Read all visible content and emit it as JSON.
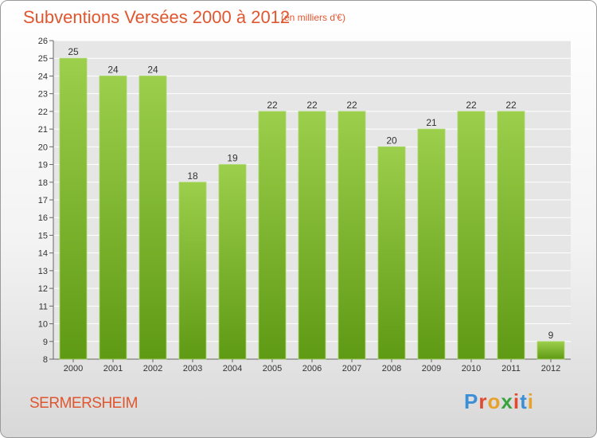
{
  "header": {
    "title": "Subventions Versées 2000 à 2012",
    "subtitle": "(en milliers d'€)"
  },
  "footer": {
    "commune": "SERMERSHEIM",
    "logo_text": "Proxiti",
    "logo_colors": [
      "#3a8fd6",
      "#e24a2f",
      "#e8a12a",
      "#3aa33c",
      "#e24a2f",
      "#3a8fd6",
      "#e8a12a"
    ]
  },
  "colors": {
    "bar_top": "#9ccf4b",
    "bar_bottom": "#5f9a14",
    "plot_bg": "#e6e6e6",
    "grid": "#ffffff",
    "title": "#e0562f"
  },
  "chart_data": {
    "type": "bar",
    "categories": [
      "2000",
      "2001",
      "2002",
      "2003",
      "2004",
      "2005",
      "2006",
      "2007",
      "2008",
      "2009",
      "2010",
      "2011",
      "2012"
    ],
    "values": [
      25,
      24,
      24,
      18,
      19,
      22,
      22,
      22,
      20,
      21,
      22,
      22,
      9
    ],
    "ylim": [
      8,
      26
    ],
    "yticks": [
      8,
      9,
      10,
      11,
      12,
      13,
      14,
      15,
      16,
      17,
      18,
      19,
      20,
      21,
      22,
      23,
      24,
      25,
      26
    ],
    "grid": true,
    "data_labels": true
  }
}
